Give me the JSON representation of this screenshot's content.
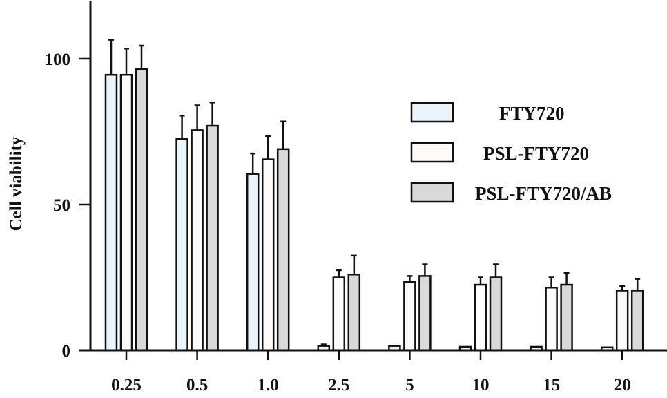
{
  "chart_data": {
    "type": "bar",
    "title": "",
    "xlabel": "",
    "ylabel": "Cell viability",
    "ylim": [
      0,
      120
    ],
    "yticks": [
      0,
      50,
      100
    ],
    "grid": false,
    "legend_position": "upper right",
    "categories": [
      "0.25",
      "0.5",
      "1.0",
      "2.5",
      "5",
      "10",
      "15",
      "20"
    ],
    "series": [
      {
        "name": "FTY720",
        "color": "#eaf4fb",
        "values": [
          94.5,
          72.5,
          60.5,
          1.5,
          1.5,
          1.2,
          1.2,
          1.0
        ],
        "errors": [
          12,
          8,
          7,
          0.5,
          0,
          0.3,
          0.3,
          0
        ]
      },
      {
        "name": "PSL-FTY720",
        "color": "#fdfafa",
        "values": [
          94.5,
          75.5,
          65.5,
          25.0,
          23.5,
          22.5,
          21.5,
          20.5
        ],
        "errors": [
          9,
          8.5,
          8,
          2.5,
          2,
          2.5,
          3.5,
          1.5
        ]
      },
      {
        "name": "PSL-FTY720/AB",
        "color": "#d9d9d9",
        "values": [
          96.5,
          77.0,
          69.0,
          26.0,
          25.5,
          25.0,
          22.5,
          20.5
        ],
        "errors": [
          8,
          8,
          9.5,
          6.5,
          4,
          4.5,
          4,
          4
        ]
      }
    ]
  },
  "axes": {
    "y_label": "Cell viability",
    "y_tick_labels": [
      "0",
      "50",
      "100"
    ]
  },
  "legend": {
    "items": [
      {
        "label": "FTY720",
        "color": "#eaf4fb"
      },
      {
        "label": "PSL-FTY720",
        "color": "#fdfafa"
      },
      {
        "label": "PSL-FTY720/AB",
        "color": "#d9d9d9"
      }
    ]
  }
}
